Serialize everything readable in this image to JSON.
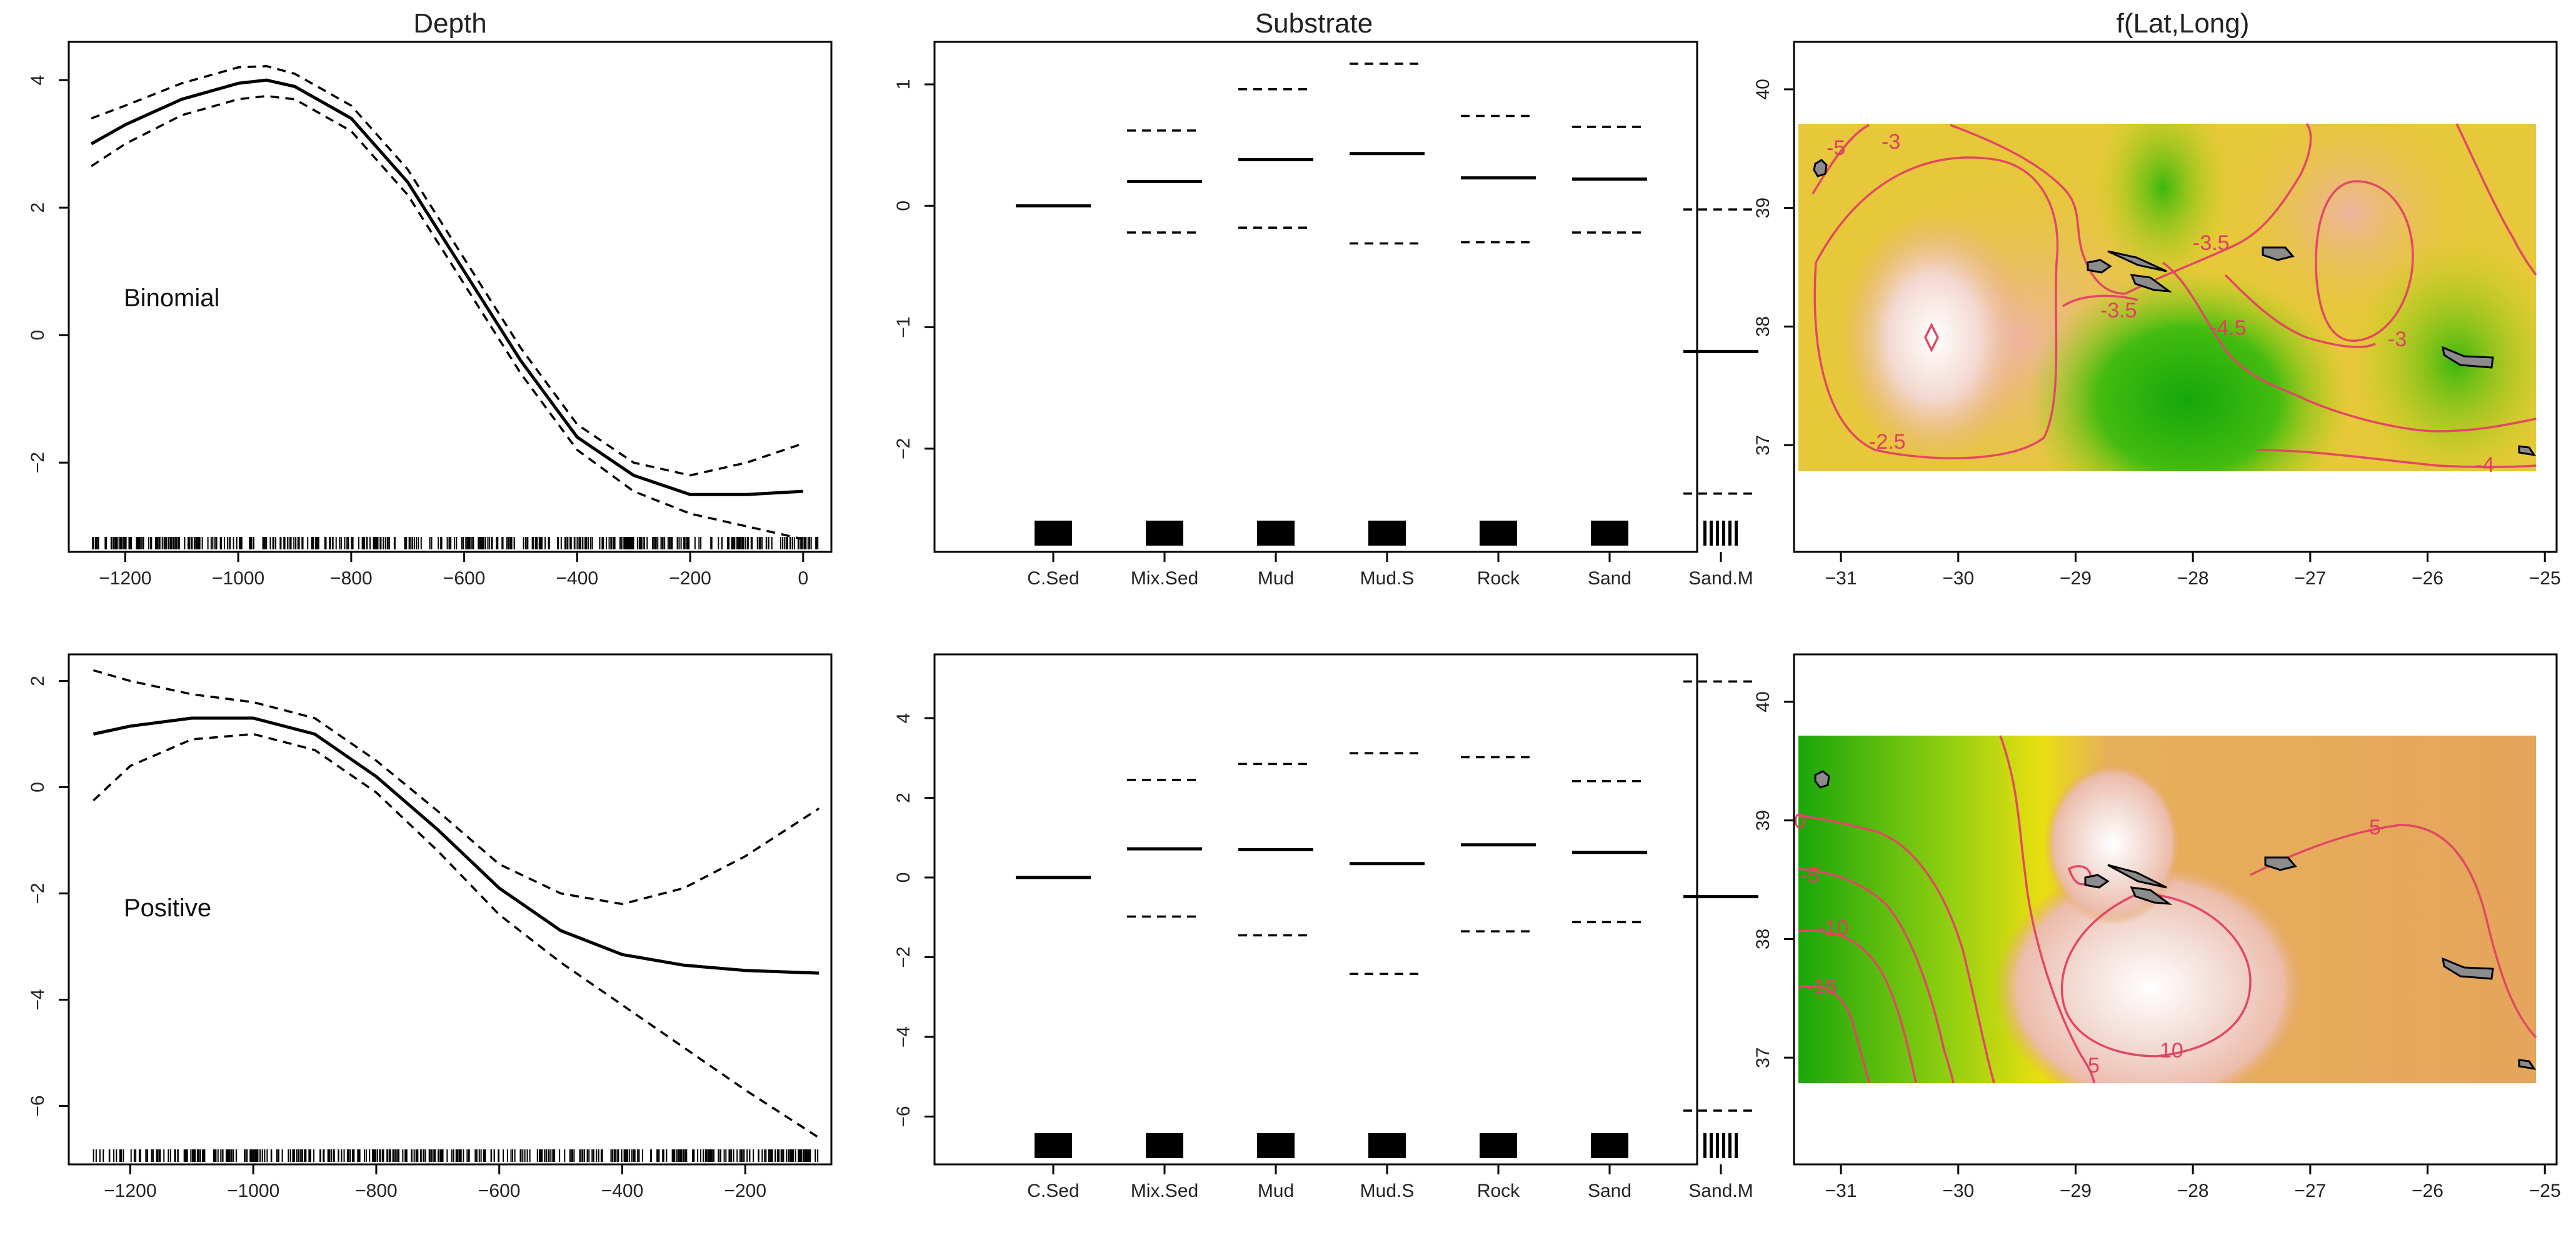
{
  "chart_data": [
    {
      "type": "line",
      "title": "Depth",
      "annotation": "Binomial",
      "xlim": [
        -1300,
        50
      ],
      "ylim": [
        -3.4,
        4.6
      ],
      "xticks": [
        -1200,
        -1000,
        -800,
        -600,
        -400,
        -200,
        0
      ],
      "yticks": [
        -2,
        0,
        2,
        4
      ],
      "series": [
        {
          "name": "fit",
          "style": "solid",
          "x": [
            -1260,
            -1200,
            -1100,
            -1000,
            -950,
            -900,
            -800,
            -700,
            -600,
            -500,
            -400,
            -300,
            -200,
            -100,
            0
          ],
          "y": [
            3.0,
            3.3,
            3.7,
            3.95,
            4.0,
            3.9,
            3.4,
            2.4,
            1.0,
            -0.4,
            -1.6,
            -2.2,
            -2.5,
            -2.5,
            -2.45
          ]
        },
        {
          "name": "upper",
          "style": "dashed",
          "x": [
            -1260,
            -1200,
            -1100,
            -1000,
            -950,
            -900,
            -800,
            -700,
            -600,
            -500,
            -400,
            -300,
            -200,
            -100,
            0
          ],
          "y": [
            3.4,
            3.6,
            3.95,
            4.2,
            4.22,
            4.1,
            3.6,
            2.6,
            1.2,
            -0.2,
            -1.4,
            -2.0,
            -2.2,
            -2.0,
            -1.7
          ]
        },
        {
          "name": "lower",
          "style": "dashed",
          "x": [
            -1260,
            -1200,
            -1100,
            -1000,
            -950,
            -900,
            -800,
            -700,
            -600,
            -500,
            -400,
            -300,
            -200,
            -100,
            0
          ],
          "y": [
            2.65,
            3.0,
            3.45,
            3.7,
            3.75,
            3.7,
            3.2,
            2.2,
            0.8,
            -0.6,
            -1.8,
            -2.45,
            -2.8,
            -3.0,
            -3.2
          ]
        }
      ]
    },
    {
      "type": "categorical-effect",
      "title": "Substrate",
      "categories": [
        "C.Sed",
        "Mix.Sed",
        "Mud",
        "Mud.S",
        "Rock",
        "Sand",
        "Sand.M"
      ],
      "ylim": [
        -2.85,
        1.35
      ],
      "yticks": [
        -2,
        -1,
        0,
        1
      ],
      "values": [
        0.0,
        0.2,
        0.38,
        0.43,
        0.23,
        0.22,
        -1.2
      ],
      "upper": [
        null,
        0.62,
        0.96,
        1.17,
        0.74,
        0.65,
        -0.03
      ],
      "lower": [
        null,
        -0.22,
        -0.18,
        -0.31,
        -0.3,
        -0.22,
        -2.37
      ]
    },
    {
      "type": "heatmap",
      "title": "f(Lat,Long)",
      "xlim": [
        -31.4,
        -24.9
      ],
      "ylim": [
        36.1,
        40.4
      ],
      "xticks": [
        -31,
        -30,
        -29,
        -28,
        -27,
        -26,
        -25
      ],
      "yticks": [
        37,
        38,
        39,
        40
      ],
      "contour_labels": [
        "-5",
        "-3",
        "-3.5",
        "-3.5",
        "-4.5",
        "-3",
        "-2.5",
        "-4"
      ]
    },
    {
      "type": "line",
      "annotation": "Positive",
      "xlim": [
        -1300,
        -60
      ],
      "ylim": [
        -7.1,
        2.5
      ],
      "xticks": [
        -1200,
        -1000,
        -800,
        -600,
        -400,
        -200
      ],
      "yticks": [
        -6,
        -4,
        -2,
        0,
        2
      ],
      "series": [
        {
          "name": "fit",
          "style": "solid",
          "x": [
            -1260,
            -1200,
            -1100,
            -1000,
            -900,
            -800,
            -700,
            -600,
            -500,
            -400,
            -300,
            -200,
            -80
          ],
          "y": [
            1.0,
            1.15,
            1.3,
            1.3,
            1.0,
            0.2,
            -0.8,
            -1.9,
            -2.7,
            -3.15,
            -3.35,
            -3.45,
            -3.5
          ]
        },
        {
          "name": "upper",
          "style": "dashed",
          "x": [
            -1260,
            -1200,
            -1100,
            -1000,
            -900,
            -800,
            -700,
            -600,
            -500,
            -400,
            -300,
            -200,
            -80
          ],
          "y": [
            2.2,
            2.0,
            1.75,
            1.6,
            1.3,
            0.5,
            -0.45,
            -1.45,
            -2.0,
            -2.2,
            -1.9,
            -1.3,
            -0.4
          ]
        },
        {
          "name": "lower",
          "style": "dashed",
          "x": [
            -1260,
            -1200,
            -1100,
            -1000,
            -900,
            -800,
            -700,
            -600,
            -500,
            -400,
            -300,
            -200,
            -80
          ],
          "y": [
            -0.25,
            0.4,
            0.9,
            1.0,
            0.7,
            -0.1,
            -1.2,
            -2.4,
            -3.3,
            -4.1,
            -4.9,
            -5.7,
            -6.6
          ]
        }
      ]
    },
    {
      "type": "categorical-effect",
      "categories": [
        "C.Sed",
        "Mix.Sed",
        "Mud",
        "Mud.S",
        "Rock",
        "Sand",
        "Sand.M"
      ],
      "ylim": [
        -7.2,
        5.6
      ],
      "yticks": [
        -6,
        -4,
        -2,
        0,
        2,
        4
      ],
      "values": [
        0.0,
        0.72,
        0.7,
        0.35,
        0.82,
        0.63,
        -0.48
      ],
      "upper": [
        null,
        2.45,
        2.85,
        3.12,
        3.02,
        2.42,
        4.92
      ],
      "lower": [
        null,
        -0.98,
        -1.45,
        -2.42,
        -1.35,
        -1.12,
        -5.85
      ]
    },
    {
      "type": "heatmap",
      "xlim": [
        -31.4,
        -24.9
      ],
      "ylim": [
        36.1,
        40.4
      ],
      "xticks": [
        -31,
        -30,
        -29,
        -28,
        -27,
        -26,
        -25
      ],
      "yticks": [
        37,
        38,
        39,
        40
      ],
      "contour_labels": [
        "0",
        "-5",
        "-10",
        "-15",
        "5",
        "10",
        "5"
      ]
    }
  ]
}
